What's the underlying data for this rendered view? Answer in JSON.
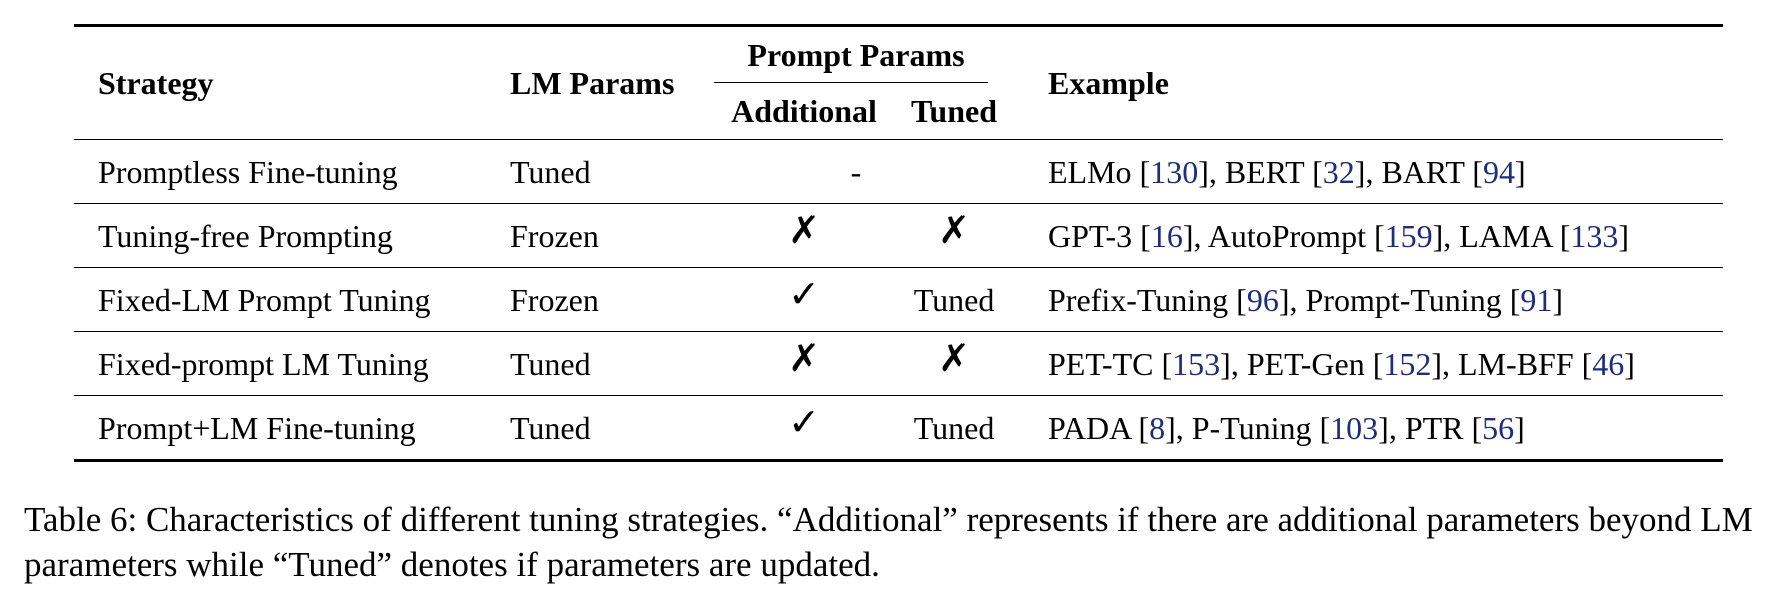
{
  "table": {
    "headers": {
      "strategy": "Strategy",
      "lm_params": "LM Params",
      "prompt_params": "Prompt Params",
      "additional": "Additional",
      "tuned": "Tuned",
      "example": "Example"
    },
    "rows": [
      {
        "strategy": "Promptless Fine-tuning",
        "lm_params": "Tuned",
        "prompt_merged": "-",
        "examples": [
          {
            "name": "ELMo",
            "ref": "130"
          },
          {
            "name": "BERT",
            "ref": "32"
          },
          {
            "name": "BART",
            "ref": "94"
          }
        ]
      },
      {
        "strategy": "Tuning-free Prompting",
        "lm_params": "Frozen",
        "additional": "✗",
        "tuned": "✗",
        "examples": [
          {
            "name": "GPT-3",
            "ref": "16"
          },
          {
            "name": "AutoPrompt",
            "ref": "159"
          },
          {
            "name": "LAMA",
            "ref": "133"
          }
        ]
      },
      {
        "strategy": "Fixed-LM Prompt Tuning",
        "lm_params": "Frozen",
        "additional": "✓",
        "tuned": "Tuned",
        "examples": [
          {
            "name": "Prefix-Tuning",
            "ref": "96"
          },
          {
            "name": "Prompt-Tuning",
            "ref": "91"
          }
        ]
      },
      {
        "strategy": "Fixed-prompt LM Tuning",
        "lm_params": "Tuned",
        "additional": "✗",
        "tuned": "✗",
        "examples": [
          {
            "name": "PET-TC",
            "ref": "153"
          },
          {
            "name": "PET-Gen",
            "ref": "152"
          },
          {
            "name": "LM-BFF",
            "ref": "46"
          }
        ]
      },
      {
        "strategy": "Prompt+LM Fine-tuning",
        "lm_params": "Tuned",
        "additional": "✓",
        "tuned": "Tuned",
        "examples": [
          {
            "name": "PADA",
            "ref": "8"
          },
          {
            "name": "P-Tuning",
            "ref": "103"
          },
          {
            "name": "PTR",
            "ref": "56"
          }
        ]
      }
    ]
  },
  "caption": "Table 6: Characteristics of different tuning strategies. “Additional” represents if there are additional parameters beyond LM parameters while “Tuned” denotes if parameters are updated.",
  "colors": {
    "citation": "#1f2d7a",
    "text": "#000000"
  }
}
